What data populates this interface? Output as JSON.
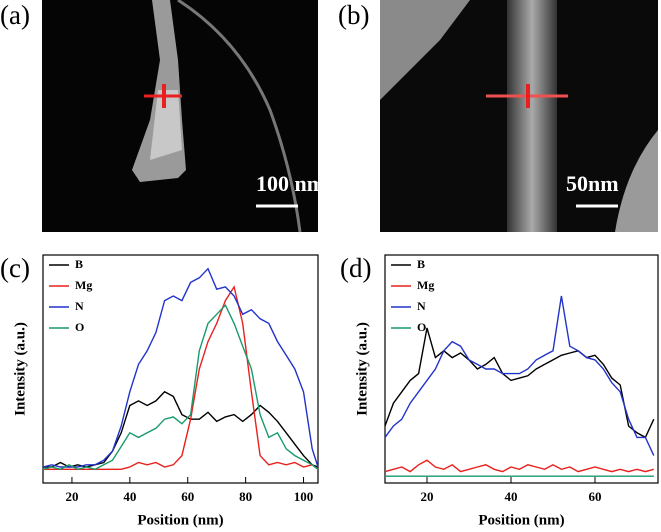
{
  "panels": [
    {
      "label": "(a)",
      "scale_bar": "100 nm"
    },
    {
      "label": "(b)",
      "scale_bar": "50nm"
    }
  ],
  "chart_data": [
    {
      "type": "line",
      "label": "(c)",
      "x_label": "Position (nm)",
      "y_label": "Intensity (a.u.)",
      "xlim": [
        10,
        105
      ],
      "xticks": [
        20,
        40,
        60,
        80,
        100
      ],
      "ylim": [
        0,
        100
      ],
      "x": [
        10,
        13,
        16,
        19,
        22,
        25,
        28,
        31,
        34,
        37,
        40,
        43,
        46,
        49,
        52,
        55,
        58,
        61,
        64,
        67,
        70,
        73,
        76,
        79,
        82,
        85,
        88,
        91,
        94,
        97,
        100,
        103,
        105
      ],
      "series": [
        {
          "name": "B",
          "color": "#000000",
          "values": [
            7,
            7,
            9,
            7,
            8,
            7,
            8,
            9,
            14,
            22,
            34,
            36,
            34,
            36,
            40,
            38,
            30,
            28,
            28,
            31,
            27,
            29,
            30,
            27,
            30,
            34,
            31,
            27,
            22,
            17,
            12,
            8,
            7
          ]
        },
        {
          "name": "Mg",
          "color": "#e8211d",
          "values": [
            6,
            6,
            6,
            6,
            6,
            6,
            6,
            6,
            6,
            6,
            7,
            9,
            8,
            9,
            7,
            8,
            12,
            28,
            50,
            62,
            70,
            80,
            86,
            70,
            40,
            12,
            8,
            9,
            8,
            9,
            7,
            8,
            6
          ]
        },
        {
          "name": "N",
          "color": "#2233cc",
          "values": [
            7,
            8,
            7,
            7,
            7,
            8,
            8,
            10,
            14,
            25,
            40,
            52,
            58,
            66,
            80,
            82,
            80,
            88,
            90,
            94,
            85,
            86,
            82,
            74,
            76,
            72,
            70,
            62,
            56,
            50,
            40,
            15,
            7
          ]
        },
        {
          "name": "O",
          "color": "#1a9a6c",
          "values": [
            6,
            7,
            6,
            8,
            6,
            7,
            6,
            8,
            10,
            16,
            22,
            20,
            22,
            24,
            28,
            29,
            26,
            30,
            58,
            70,
            74,
            78,
            70,
            60,
            50,
            30,
            20,
            22,
            15,
            12,
            10,
            8,
            6
          ]
        }
      ]
    },
    {
      "type": "line",
      "label": "(d)",
      "x_label": "Position (nm)",
      "y_label": "Intensity (a.u.)",
      "xlim": [
        10,
        75
      ],
      "xticks": [
        20,
        40,
        60
      ],
      "ylim": [
        0,
        100
      ],
      "x": [
        10,
        12,
        14,
        16,
        18,
        20,
        22,
        24,
        26,
        28,
        30,
        32,
        34,
        36,
        38,
        40,
        42,
        44,
        46,
        48,
        50,
        52,
        54,
        56,
        58,
        60,
        62,
        64,
        66,
        68,
        70,
        72,
        74
      ],
      "series": [
        {
          "name": "B",
          "color": "#000000",
          "values": [
            25,
            35,
            40,
            45,
            48,
            68,
            55,
            58,
            55,
            57,
            54,
            50,
            52,
            55,
            48,
            45,
            46,
            47,
            50,
            52,
            54,
            56,
            57,
            58,
            55,
            56,
            52,
            46,
            43,
            25,
            22,
            20,
            28
          ]
        },
        {
          "name": "Mg",
          "color": "#e8211d",
          "values": [
            5,
            6,
            7,
            5,
            8,
            10,
            7,
            6,
            8,
            5,
            6,
            7,
            8,
            6,
            5,
            7,
            6,
            8,
            7,
            6,
            8,
            6,
            7,
            5,
            6,
            7,
            6,
            5,
            6,
            5,
            6,
            5,
            6
          ]
        },
        {
          "name": "N",
          "color": "#2233cc",
          "values": [
            20,
            25,
            28,
            35,
            40,
            45,
            50,
            58,
            62,
            60,
            54,
            52,
            50,
            50,
            48,
            48,
            48,
            50,
            54,
            56,
            58,
            82,
            60,
            58,
            55,
            54,
            50,
            44,
            40,
            28,
            20,
            20,
            12
          ]
        },
        {
          "name": "O",
          "color": "#1a9a6c",
          "values": [
            3,
            3,
            3,
            3,
            3,
            3,
            3,
            3,
            3,
            3,
            3,
            3,
            3,
            3,
            3,
            3,
            3,
            3,
            3,
            3,
            3,
            3,
            3,
            3,
            3,
            3,
            3,
            3,
            3,
            3,
            3,
            3,
            3
          ]
        }
      ]
    }
  ]
}
